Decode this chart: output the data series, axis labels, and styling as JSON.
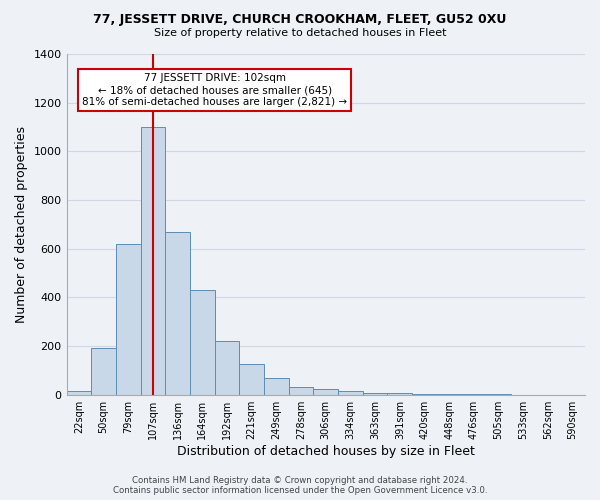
{
  "title": "77, JESSETT DRIVE, CHURCH CROOKHAM, FLEET, GU52 0XU",
  "subtitle": "Size of property relative to detached houses in Fleet",
  "xlabel": "Distribution of detached houses by size in Fleet",
  "ylabel": "Number of detached properties",
  "bar_color": "#c8d8e8",
  "bar_edge_color": "#5b8db8",
  "categories": [
    "22sqm",
    "50sqm",
    "79sqm",
    "107sqm",
    "136sqm",
    "164sqm",
    "192sqm",
    "221sqm",
    "249sqm",
    "278sqm",
    "306sqm",
    "334sqm",
    "363sqm",
    "391sqm",
    "420sqm",
    "448sqm",
    "476sqm",
    "505sqm",
    "533sqm",
    "562sqm",
    "590sqm"
  ],
  "values": [
    15,
    190,
    620,
    1100,
    670,
    430,
    220,
    125,
    70,
    30,
    25,
    15,
    8,
    5,
    3,
    2,
    1,
    1,
    0,
    0,
    0
  ],
  "ylim": [
    0,
    1400
  ],
  "yticks": [
    0,
    200,
    400,
    600,
    800,
    1000,
    1200,
    1400
  ],
  "vline_x_index": 3,
  "vline_color": "#cc0000",
  "annotation_title": "77 JESSETT DRIVE: 102sqm",
  "annotation_line1": "← 18% of detached houses are smaller (645)",
  "annotation_line2": "81% of semi-detached houses are larger (2,821) →",
  "annotation_box_color": "#ffffff",
  "annotation_box_edge": "#cc0000",
  "grid_color": "#d0d8e8",
  "bg_color": "#eef2f7",
  "footer1": "Contains HM Land Registry data © Crown copyright and database right 2024.",
  "footer2": "Contains public sector information licensed under the Open Government Licence v3.0."
}
